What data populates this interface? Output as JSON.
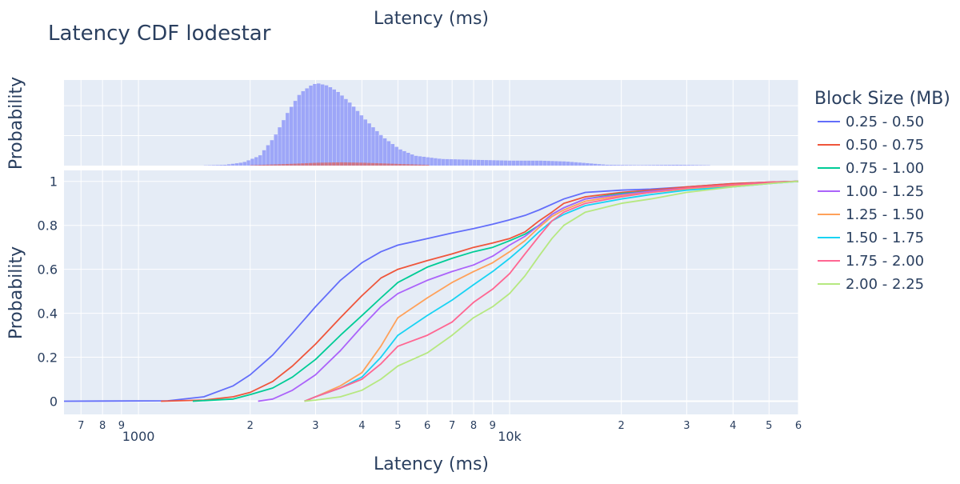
{
  "chart_data": {
    "type": "line",
    "title": "Latency CDF lodestar",
    "xlabel": "Latency (ms)",
    "top_xlabel": "Latency (ms)",
    "ylabel": "Probability",
    "top_ylabel": "Probability",
    "x_scale": "log",
    "xlim": [
      630,
      60000
    ],
    "ylim": [
      -0.06,
      1.05
    ],
    "y_ticks": [
      0,
      0.2,
      0.4,
      0.6,
      0.8,
      1
    ],
    "y_tick_labels": [
      "0",
      "0.2",
      "0.4",
      "0.6",
      "0.8",
      "1"
    ],
    "x_major_ticks": [
      {
        "value": 1000,
        "label": "1000"
      },
      {
        "value": 10000,
        "label": "10k"
      }
    ],
    "x_minor_ticks": [
      {
        "value": 700,
        "label": "7"
      },
      {
        "value": 800,
        "label": "8"
      },
      {
        "value": 900,
        "label": "9"
      },
      {
        "value": 2000,
        "label": "2"
      },
      {
        "value": 3000,
        "label": "3"
      },
      {
        "value": 4000,
        "label": "4"
      },
      {
        "value": 5000,
        "label": "5"
      },
      {
        "value": 6000,
        "label": "6"
      },
      {
        "value": 7000,
        "label": "7"
      },
      {
        "value": 8000,
        "label": "8"
      },
      {
        "value": 9000,
        "label": "9"
      },
      {
        "value": 20000,
        "label": "2"
      },
      {
        "value": 30000,
        "label": "3"
      },
      {
        "value": 40000,
        "label": "4"
      },
      {
        "value": 50000,
        "label": "5"
      },
      {
        "value": 60000,
        "label": "6"
      }
    ],
    "grid": true,
    "legend_placement": "right",
    "legend_title": "Block Size (MB)",
    "series": [
      {
        "name": "0.25 - 0.50",
        "color": "#636efa",
        "x": [
          630,
          1200,
          1500,
          1800,
          2000,
          2300,
          2600,
          3000,
          3500,
          4000,
          4500,
          5000,
          6000,
          7000,
          8000,
          9000,
          10000,
          11000,
          12000,
          14000,
          16000,
          20000,
          24000,
          30000,
          40000,
          50000,
          60000
        ],
        "y": [
          0,
          0.002,
          0.02,
          0.07,
          0.12,
          0.21,
          0.31,
          0.43,
          0.55,
          0.63,
          0.68,
          0.71,
          0.74,
          0.765,
          0.785,
          0.805,
          0.825,
          0.845,
          0.87,
          0.92,
          0.95,
          0.96,
          0.965,
          0.975,
          0.99,
          0.997,
          1.0
        ]
      },
      {
        "name": "0.50 - 0.75",
        "color": "#ef553b",
        "x": [
          1150,
          1500,
          1800,
          2000,
          2300,
          2600,
          3000,
          3500,
          4000,
          4500,
          5000,
          6000,
          7000,
          8000,
          9000,
          10000,
          11000,
          12000,
          13000,
          14000,
          16000,
          20000,
          24000,
          30000,
          40000,
          50000,
          60000
        ],
        "y": [
          0,
          0.005,
          0.02,
          0.04,
          0.09,
          0.16,
          0.26,
          0.38,
          0.48,
          0.56,
          0.6,
          0.64,
          0.67,
          0.7,
          0.72,
          0.74,
          0.77,
          0.82,
          0.86,
          0.9,
          0.93,
          0.95,
          0.96,
          0.975,
          0.99,
          0.997,
          1.0
        ]
      },
      {
        "name": "0.75 - 1.00",
        "color": "#00cc96",
        "x": [
          1400,
          1800,
          2000,
          2300,
          2600,
          3000,
          3500,
          4000,
          4500,
          5000,
          6000,
          7000,
          8000,
          9000,
          10000,
          11000,
          12000,
          13000,
          14000,
          16000,
          20000,
          24000,
          30000,
          40000,
          50000,
          60000
        ],
        "y": [
          0,
          0.01,
          0.03,
          0.06,
          0.11,
          0.19,
          0.3,
          0.39,
          0.47,
          0.54,
          0.61,
          0.65,
          0.68,
          0.7,
          0.73,
          0.76,
          0.8,
          0.85,
          0.88,
          0.92,
          0.945,
          0.955,
          0.97,
          0.985,
          0.995,
          1.0
        ]
      },
      {
        "name": "1.00 - 1.25",
        "color": "#ab63fa",
        "x": [
          2100,
          2300,
          2600,
          3000,
          3500,
          4000,
          4500,
          5000,
          6000,
          7000,
          8000,
          9000,
          10000,
          11000,
          12000,
          13000,
          14000,
          16000,
          20000,
          24000,
          30000,
          40000,
          50000,
          60000
        ],
        "y": [
          0,
          0.01,
          0.05,
          0.12,
          0.23,
          0.34,
          0.43,
          0.49,
          0.55,
          0.59,
          0.62,
          0.66,
          0.71,
          0.75,
          0.8,
          0.85,
          0.88,
          0.92,
          0.94,
          0.955,
          0.97,
          0.985,
          0.995,
          1.0
        ]
      },
      {
        "name": "1.25 - 1.50",
        "color": "#ffa15a",
        "x": [
          2800,
          3000,
          3500,
          4000,
          4500,
          5000,
          6000,
          7000,
          8000,
          9000,
          10000,
          11000,
          12000,
          13000,
          14000,
          16000,
          20000,
          24000,
          30000,
          40000,
          50000,
          60000
        ],
        "y": [
          0,
          0.02,
          0.07,
          0.13,
          0.25,
          0.38,
          0.47,
          0.54,
          0.59,
          0.63,
          0.68,
          0.73,
          0.79,
          0.84,
          0.87,
          0.91,
          0.935,
          0.95,
          0.965,
          0.98,
          0.995,
          1.0
        ]
      },
      {
        "name": "1.50 - 1.75",
        "color": "#19d3f3",
        "x": [
          2800,
          3000,
          3500,
          4000,
          4500,
          5000,
          6000,
          7000,
          8000,
          9000,
          10000,
          11000,
          12000,
          13000,
          14000,
          16000,
          20000,
          24000,
          30000,
          40000,
          50000,
          60000
        ],
        "y": [
          0,
          0.02,
          0.06,
          0.11,
          0.2,
          0.3,
          0.39,
          0.46,
          0.53,
          0.59,
          0.65,
          0.71,
          0.77,
          0.82,
          0.85,
          0.89,
          0.92,
          0.94,
          0.96,
          0.975,
          0.99,
          1.0
        ]
      },
      {
        "name": "1.75 - 2.00",
        "color": "#ff6692",
        "x": [
          2800,
          3000,
          3500,
          4000,
          4500,
          5000,
          6000,
          7000,
          8000,
          9000,
          10000,
          11000,
          12000,
          13000,
          14000,
          16000,
          20000,
          24000,
          30000,
          40000,
          50000,
          60000
        ],
        "y": [
          0,
          0.02,
          0.06,
          0.1,
          0.17,
          0.25,
          0.3,
          0.36,
          0.45,
          0.51,
          0.58,
          0.67,
          0.75,
          0.82,
          0.86,
          0.9,
          0.93,
          0.95,
          0.97,
          0.985,
          0.995,
          1.0
        ]
      },
      {
        "name": "2.00 - 2.25",
        "color": "#b6e880",
        "x": [
          2800,
          3000,
          3500,
          4000,
          4500,
          5000,
          6000,
          7000,
          8000,
          9000,
          10000,
          11000,
          12000,
          13000,
          14000,
          16000,
          20000,
          24000,
          30000,
          40000,
          50000,
          60000
        ],
        "y": [
          0,
          0.005,
          0.02,
          0.05,
          0.1,
          0.16,
          0.22,
          0.3,
          0.38,
          0.43,
          0.49,
          0.57,
          0.66,
          0.74,
          0.8,
          0.86,
          0.9,
          0.92,
          0.95,
          0.975,
          0.99,
          1.0
        ]
      }
    ],
    "histograms": [
      {
        "name": "0.25 - 0.50",
        "color": "#636efa",
        "x": [
          1500,
          1700,
          1900,
          2100,
          2300,
          2500,
          2700,
          2900,
          3000,
          3200,
          3400,
          3700,
          4000,
          4500,
          5000,
          5500,
          6500,
          8000,
          10000,
          12000,
          14000,
          16000,
          18000,
          22000,
          28000,
          34000
        ],
        "y": [
          0.003,
          0.01,
          0.04,
          0.12,
          0.35,
          0.65,
          0.88,
          0.98,
          1.0,
          0.97,
          0.9,
          0.75,
          0.58,
          0.35,
          0.2,
          0.12,
          0.08,
          0.07,
          0.06,
          0.06,
          0.05,
          0.03,
          0.01,
          0.005,
          0.01,
          0.004
        ]
      },
      {
        "name": "0.50 - 0.75",
        "color": "#ef553b",
        "x": [
          2000,
          2500,
          3000,
          3500,
          4000,
          5000,
          6000
        ],
        "y": [
          0.005,
          0.02,
          0.035,
          0.04,
          0.035,
          0.02,
          0.008
        ]
      }
    ]
  }
}
